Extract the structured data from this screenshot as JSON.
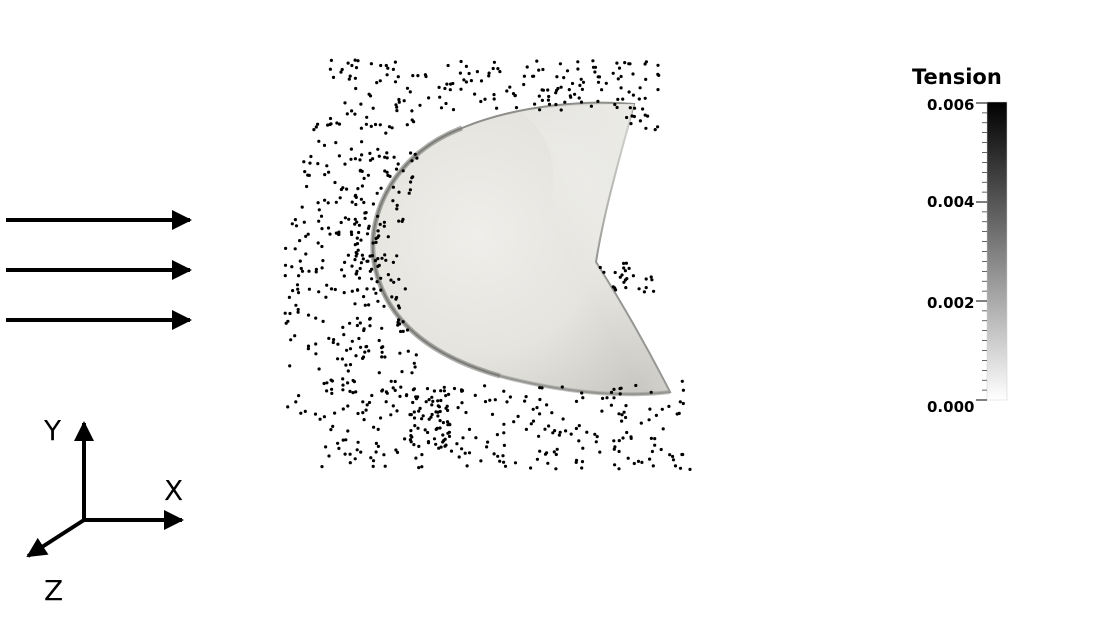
{
  "flow_arrows": {
    "count": 3,
    "direction": "+x"
  },
  "axes_triad": {
    "x_label": "X",
    "y_label": "Y",
    "z_label": "Z"
  },
  "colorbar": {
    "title": "Tension",
    "min": 0.0,
    "max": 0.006,
    "tick_labels": [
      "0.006",
      "0.004",
      "0.002",
      "0.000"
    ],
    "colormap": [
      "#ffffff",
      "#000000"
    ]
  },
  "colors": {
    "particles": "#000000",
    "membrane_light": "#f3f2ec",
    "membrane_mid": "#d6d5d0",
    "membrane_dark": "#8e8e8a"
  }
}
